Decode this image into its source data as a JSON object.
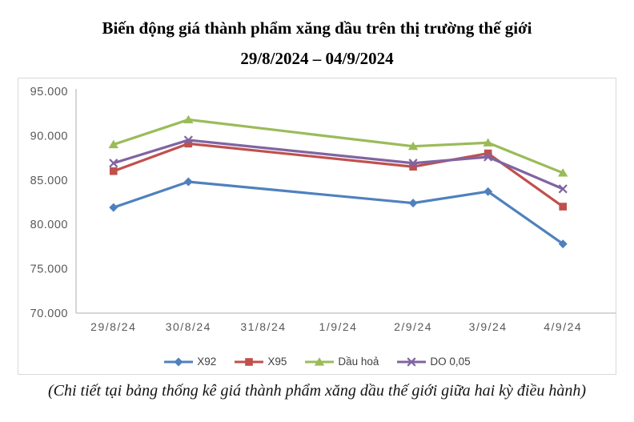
{
  "header": {
    "title_line1": "Biến động giá thành phẩm xăng dầu trên thị trường thế giới",
    "title_line2": "29/8/2024 – 04/9/2024"
  },
  "caption": "(Chi tiết tại bảng thống kê giá thành phẩm xăng dầu thế giới giữa hai kỳ điều hành)",
  "chart_data": {
    "type": "line",
    "title": "Biến động giá thành phẩm xăng dầu trên thị trường thế giới 29/8/2024 – 04/9/2024",
    "categories": [
      "29/8/24",
      "30/8/24",
      "31/8/24",
      "1/9/24",
      "2/9/24",
      "3/9/24",
      "4/9/24"
    ],
    "series": [
      {
        "name": "X92",
        "color": "#4F81BD",
        "marker": "diamond",
        "values": [
          81900,
          84800,
          null,
          null,
          82400,
          83700,
          77800
        ]
      },
      {
        "name": "X95",
        "color": "#C0504D",
        "marker": "square",
        "values": [
          86000,
          89100,
          null,
          null,
          86500,
          88000,
          82000
        ]
      },
      {
        "name": "Dầu hoả",
        "color": "#9BBB59",
        "marker": "triangle",
        "values": [
          89000,
          91800,
          null,
          null,
          88800,
          89200,
          85800
        ]
      },
      {
        "name": "DO 0,05",
        "color": "#8064A2",
        "marker": "x",
        "values": [
          86900,
          89500,
          null,
          null,
          86900,
          87600,
          84000
        ]
      }
    ],
    "ylim": [
      70000,
      95000
    ],
    "ytick_step": 5000,
    "ytick_labels": [
      "70.000",
      "75.000",
      "80.000",
      "85.000",
      "90.000",
      "95.000"
    ],
    "xlabel": "",
    "ylabel": "",
    "grid": false,
    "legend_position": "bottom",
    "colors": {
      "axis_line": "#bfbfbf",
      "tick_text": "#595959",
      "legend_text": "#404040",
      "chart_border": "#d9d9d9"
    }
  }
}
